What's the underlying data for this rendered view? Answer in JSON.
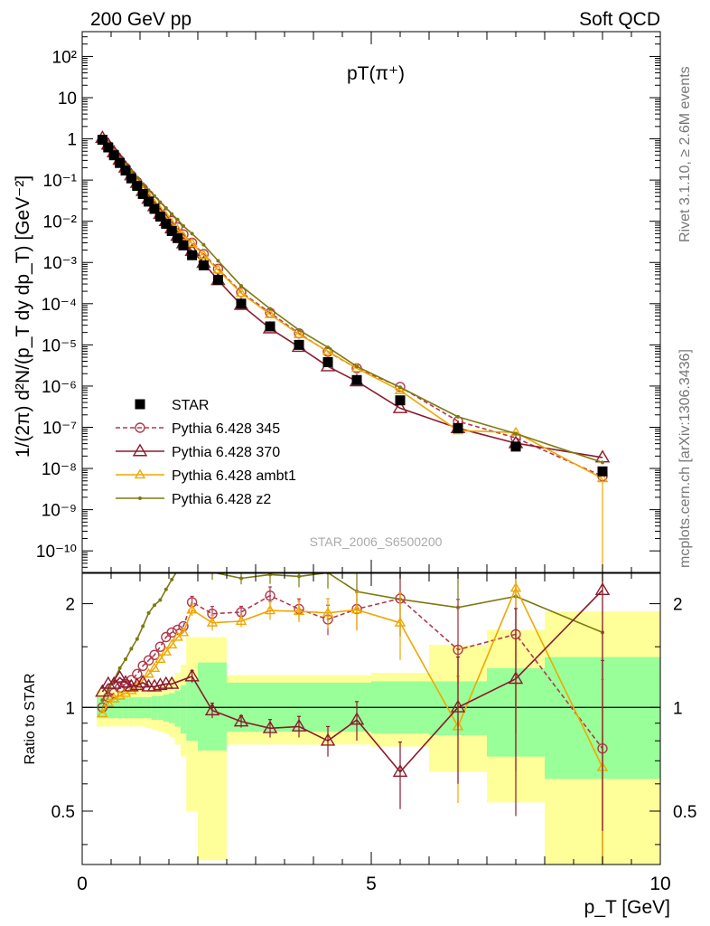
{
  "header": {
    "left": "200 GeV pp",
    "right": "Soft QCD"
  },
  "side_labels": {
    "top": "Rivet 3.1.10, ≥ 2.6M events",
    "bottom": "mcplots.cern.ch [arXiv:1306.3436]"
  },
  "colors": {
    "STAR": "#000000",
    "p345": "#b03a4c",
    "p370": "#8b1a2e",
    "ambt1": "#f0a800",
    "z2": "#7d7a10",
    "band_inner": "#99ff99",
    "band_outer": "#ffff99"
  },
  "chart_data": [
    {
      "type": "scatter",
      "title": "pT(π⁺)",
      "watermark": "STAR_2006_S6500200",
      "ylabel": "1/(2π) d²N/(p_T dy dp_T) [GeV⁻²]",
      "xlim": [
        0,
        10
      ],
      "ylim": [
        3e-11,
        400
      ],
      "yscale": "log",
      "y_ticks": [
        "10⁻¹⁰",
        "10⁻⁹",
        "10⁻⁸",
        "10⁻⁷",
        "10⁻⁶",
        "10⁻⁵",
        "10⁻⁴",
        "10⁻³",
        "10⁻²",
        "10⁻¹",
        "1",
        "10",
        "10²"
      ],
      "legend_position": "bottom-left",
      "x": [
        0.35,
        0.45,
        0.55,
        0.65,
        0.75,
        0.85,
        0.95,
        1.05,
        1.15,
        1.25,
        1.35,
        1.45,
        1.55,
        1.65,
        1.75,
        1.9,
        2.1,
        2.35,
        2.75,
        3.25,
        3.75,
        4.25,
        4.75,
        5.5,
        6.5,
        7.5,
        9.0
      ],
      "series": [
        {
          "name": "STAR",
          "marker": "square",
          "values": [
            0.95,
            0.62,
            0.4,
            0.26,
            0.17,
            0.11,
            0.072,
            0.046,
            0.03,
            0.02,
            0.013,
            0.0087,
            0.0058,
            0.0039,
            0.0026,
            0.0015,
            0.00085,
            0.00038,
            0.0001,
            2.8e-05,
            1e-05,
            3.8e-06,
            1.4e-06,
            4.5e-07,
            9.5e-08,
            3.4e-08,
            8.5e-09
          ]
        },
        {
          "name": "Pythia 6.428 345",
          "marker": "circle",
          "dash": true,
          "values": [
            0.95,
            0.68,
            0.45,
            0.3,
            0.2,
            0.13,
            0.09,
            0.062,
            0.043,
            0.03,
            0.021,
            0.015,
            0.0102,
            0.0071,
            0.0048,
            0.003,
            0.0016,
            0.0007,
            0.00019,
            6e-05,
            1.9e-05,
            6.8e-06,
            2.7e-06,
            9.5e-07,
            1.4e-07,
            5.5e-08,
            6.5e-09
          ]
        },
        {
          "name": "Pythia 6.428 370",
          "marker": "triangle",
          "values": [
            1.05,
            0.72,
            0.47,
            0.31,
            0.2,
            0.13,
            0.085,
            0.054,
            0.035,
            0.023,
            0.015,
            0.0101,
            0.0067,
            0.0044,
            0.0029,
            0.0019,
            0.00097,
            0.00037,
            9.3e-05,
            2.5e-05,
            8.9e-06,
            3e-06,
            1.3e-06,
            2.9e-07,
            9.5e-08,
            4.1e-08,
            1.85e-08
          ]
        },
        {
          "name": "Pythia 6.428 ambt1",
          "marker": "triangle-small",
          "values": [
            0.92,
            0.65,
            0.43,
            0.28,
            0.19,
            0.125,
            0.083,
            0.055,
            0.038,
            0.026,
            0.018,
            0.013,
            0.0088,
            0.0062,
            0.0043,
            0.0029,
            0.0015,
            0.00066,
            0.00018,
            5.5e-05,
            1.8e-05,
            7e-06,
            2.7e-06,
            7.8e-07,
            8.3e-08,
            7.5e-08,
            5.7e-09
          ]
        },
        {
          "name": "Pythia 6.428 z2",
          "marker": "dot",
          "values": [
            1.0,
            0.72,
            0.5,
            0.34,
            0.24,
            0.165,
            0.115,
            0.08,
            0.057,
            0.041,
            0.029,
            0.021,
            0.015,
            0.011,
            0.0077,
            0.005,
            0.0027,
            0.0011,
            0.00027,
            7.5e-05,
            2.3e-05,
            8.7e-06,
            3e-06,
            9.3e-07,
            1.8e-07,
            7e-08,
            1.4e-08
          ]
        }
      ]
    },
    {
      "type": "line",
      "ylabel": "Ratio to STAR",
      "xlabel": "p_T [GeV]",
      "xlim": [
        0,
        10
      ],
      "ylim": [
        0.35,
        2.45
      ],
      "yscale": "log",
      "x_ticks": [
        0,
        5,
        10
      ],
      "y_ticks": [
        0.5,
        1,
        2
      ],
      "reference_line": 1,
      "bands": {
        "edges": [
          0.25,
          0.4,
          0.5,
          0.6,
          0.7,
          0.8,
          0.9,
          1.0,
          1.1,
          1.2,
          1.3,
          1.4,
          1.5,
          1.6,
          1.7,
          1.8,
          2.0,
          2.5,
          3.0,
          3.5,
          4.0,
          4.5,
          5.0,
          6.0,
          7.0,
          8.0,
          10.0
        ],
        "inner_lo": [
          0.93,
          0.93,
          0.93,
          0.93,
          0.93,
          0.93,
          0.93,
          0.93,
          0.93,
          0.92,
          0.92,
          0.91,
          0.9,
          0.88,
          0.84,
          0.8,
          0.75,
          0.85,
          0.85,
          0.85,
          0.85,
          0.85,
          0.84,
          0.83,
          0.72,
          0.62,
          0.35
        ],
        "inner_hi": [
          1.07,
          1.07,
          1.07,
          1.07,
          1.07,
          1.07,
          1.07,
          1.07,
          1.07,
          1.08,
          1.08,
          1.09,
          1.1,
          1.12,
          1.16,
          1.2,
          1.35,
          1.18,
          1.18,
          1.18,
          1.18,
          1.18,
          1.19,
          1.19,
          1.3,
          1.4,
          1.67
        ],
        "outer_lo": [
          0.88,
          0.88,
          0.88,
          0.88,
          0.88,
          0.88,
          0.88,
          0.88,
          0.87,
          0.86,
          0.85,
          0.84,
          0.82,
          0.78,
          0.72,
          0.5,
          0.36,
          0.78,
          0.78,
          0.78,
          0.78,
          0.78,
          0.77,
          0.65,
          0.53,
          0.35,
          0.35
        ],
        "outer_hi": [
          1.12,
          1.12,
          1.12,
          1.12,
          1.12,
          1.12,
          1.12,
          1.12,
          1.13,
          1.14,
          1.16,
          1.18,
          1.22,
          1.26,
          1.33,
          1.6,
          1.6,
          1.24,
          1.24,
          1.24,
          1.24,
          1.24,
          1.26,
          1.52,
          1.68,
          1.9,
          2.15
        ]
      },
      "series": [
        {
          "name": "Pythia 6.428 345",
          "x": [
            0.35,
            0.45,
            0.55,
            0.65,
            0.75,
            0.85,
            0.95,
            1.05,
            1.15,
            1.25,
            1.35,
            1.45,
            1.55,
            1.65,
            1.75,
            1.9,
            2.25,
            2.75,
            3.25,
            3.75,
            4.25,
            4.75,
            5.5,
            6.5,
            7.5,
            9.0
          ],
          "values": [
            1.0,
            1.07,
            1.1,
            1.14,
            1.17,
            1.2,
            1.25,
            1.32,
            1.37,
            1.42,
            1.5,
            1.6,
            1.65,
            1.68,
            1.72,
            2.02,
            1.87,
            1.89,
            2.11,
            1.93,
            1.8,
            1.93,
            2.07,
            1.47,
            1.63,
            0.76
          ]
        },
        {
          "name": "Pythia 6.428 370",
          "x": [
            0.35,
            0.45,
            0.55,
            0.65,
            0.75,
            0.85,
            0.95,
            1.05,
            1.15,
            1.25,
            1.35,
            1.45,
            1.55,
            1.9,
            2.25,
            2.75,
            3.25,
            3.75,
            4.25,
            4.75,
            5.5,
            6.5,
            7.5,
            9.0
          ],
          "values": [
            1.11,
            1.17,
            1.17,
            1.22,
            1.18,
            1.15,
            1.16,
            1.18,
            1.15,
            1.15,
            1.16,
            1.17,
            1.17,
            1.23,
            0.98,
            0.91,
            0.87,
            0.88,
            0.8,
            0.92,
            0.65,
            1.0,
            1.21,
            2.19
          ]
        },
        {
          "name": "Pythia 6.428 ambt1",
          "x": [
            0.35,
            0.45,
            0.55,
            0.65,
            0.75,
            0.85,
            0.95,
            1.05,
            1.15,
            1.25,
            1.35,
            1.45,
            1.55,
            1.65,
            1.75,
            1.9,
            2.25,
            2.75,
            3.25,
            3.75,
            4.25,
            4.75,
            5.5,
            6.5,
            7.5,
            9.0
          ],
          "values": [
            0.96,
            1.03,
            1.06,
            1.08,
            1.1,
            1.12,
            1.15,
            1.2,
            1.25,
            1.3,
            1.38,
            1.45,
            1.52,
            1.6,
            1.65,
            1.92,
            1.76,
            1.78,
            1.91,
            1.9,
            1.88,
            1.92,
            1.76,
            0.88,
            2.22,
            0.67
          ]
        },
        {
          "name": "Pythia 6.428 z2",
          "x": [
            0.35,
            0.45,
            0.55,
            0.65,
            0.75,
            0.85,
            0.95,
            1.05,
            1.15,
            1.25,
            1.35,
            1.45,
            1.55,
            1.65,
            1.75,
            1.9,
            2.25,
            2.75,
            3.25,
            3.75,
            4.25,
            4.75,
            5.5,
            6.5,
            7.5,
            9.0
          ],
          "values": [
            1.05,
            1.12,
            1.2,
            1.3,
            1.38,
            1.48,
            1.58,
            1.72,
            1.88,
            1.98,
            2.05,
            2.2,
            2.35,
            2.5,
            2.55,
            2.6,
            2.47,
            2.37,
            2.43,
            2.4,
            2.46,
            2.17,
            2.06,
            1.95,
            2.1,
            1.65
          ]
        }
      ]
    }
  ]
}
